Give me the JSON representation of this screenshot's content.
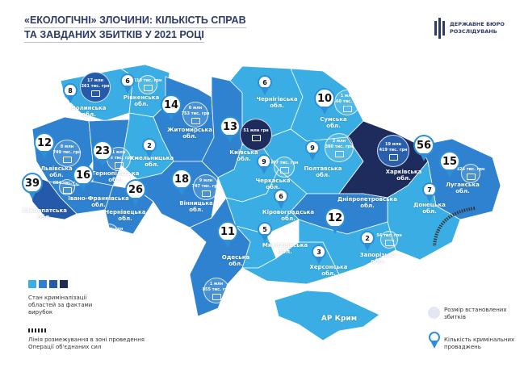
{
  "title": {
    "line1": "«ЕКОЛОГІЧНІ» ЗЛОЧИНИ: КІЛЬКІСТЬ СПРАВ",
    "line2": "ТА ЗАВДАНИХ ЗБИТКІВ У 2021 РОЦІ"
  },
  "logo": {
    "line1": "ДЕРЖАВНЕ БЮРО",
    "line2": "РОЗСЛІДУВАНЬ"
  },
  "colors": {
    "shade1": "#3aaee4",
    "shade2": "#2f82cf",
    "shade3": "#245aa9",
    "shade4": "#1d2b5d",
    "pin": "#2d8fd8",
    "title": "#2d3b66"
  },
  "regions": [
    {
      "name": "Волинська обл.",
      "count": 8,
      "damage": [
        "17 млн",
        "261 тис. грн"
      ],
      "shade": 1
    },
    {
      "name": "Рівненська обл.",
      "count": 6,
      "damage": [
        "218 тис. грн"
      ],
      "shade": 1
    },
    {
      "name": "Житомирська обл.",
      "count": 14,
      "damage": [
        "6 млн",
        "753 тис. грн"
      ],
      "shade": 2
    },
    {
      "name": "Київська обл.",
      "count": 13,
      "damage": [
        "51 млн грн"
      ],
      "shade": 2
    },
    {
      "name": "Чернігівська обл.",
      "count": 6,
      "damage": [],
      "shade": 1
    },
    {
      "name": "Сумська обл.",
      "count": 10,
      "damage": [
        "1 млн",
        "560 тис. грн"
      ],
      "shade": 1
    },
    {
      "name": "Львівська обл.",
      "count": 12,
      "damage": [
        "8 млн",
        "749 тис. грн"
      ],
      "shade": 2
    },
    {
      "name": "Тернопільська обл.",
      "count": 23,
      "damage": [
        "1 млн",
        "726 тис. грн"
      ],
      "shade": 2
    },
    {
      "name": "Хмельницька обл.",
      "count": 2,
      "damage": [],
      "shade": 1
    },
    {
      "name": "Вінницька обл.",
      "count": 18,
      "damage": [
        "9 млн",
        "747 тис. грн"
      ],
      "shade": 2
    },
    {
      "name": "Івано-Франківська обл.",
      "count": 16,
      "damage": [
        "604 тис. грн"
      ],
      "shade": 2
    },
    {
      "name": "Закарпатська обл.",
      "count": 39,
      "damage": [
        "6 млн",
        "76 тис. грн"
      ],
      "shade": 3
    },
    {
      "name": "Чернівецька обл.",
      "count": 26,
      "damage": [
        "869 тис. грн"
      ],
      "shade": 2
    },
    {
      "name": "Черкаська обл.",
      "count": 9,
      "damage": [
        "477 тис. грн"
      ],
      "shade": 1
    },
    {
      "name": "Полтавська обл.",
      "count": 9,
      "damage": [
        "2 млн",
        "380 тис. грн"
      ],
      "shade": 1
    },
    {
      "name": "Харківська обл.",
      "count": 56,
      "damage": [
        "19 млн",
        "419 тис. грн"
      ],
      "shade": 4
    },
    {
      "name": "Луганська обл.",
      "count": 15,
      "damage": [
        "326 тис. грн"
      ],
      "shade": 2
    },
    {
      "name": "Донецька обл.",
      "count": 7,
      "damage": [],
      "shade": 1
    },
    {
      "name": "Дніпропетровська обл.",
      "count": 12,
      "damage": [],
      "shade": 2
    },
    {
      "name": "Кіровоградська обл.",
      "count": 6,
      "damage": [],
      "shade": 1
    },
    {
      "name": "Миколаївська обл.",
      "count": 5,
      "damage": [],
      "shade": 1
    },
    {
      "name": "Одеська обл.",
      "count": 11,
      "damage": [
        "1 млн",
        "855 тис. грн"
      ],
      "shade": 2
    },
    {
      "name": "Херсонська обл.",
      "count": 3,
      "damage": [],
      "shade": 1
    },
    {
      "name": "Запорізька обл.",
      "count": 2,
      "damage": [
        "54 тис. грн"
      ],
      "shade": 1
    },
    {
      "name": "АР Крим",
      "count": null,
      "damage": [],
      "shade": 1
    }
  ],
  "legend": {
    "shades_label": "Стан криміналізації областей за фактами вирубок",
    "contact_line_label": "Лінія розмежування в зоні проведення Операції об'єднаних сил",
    "damage_label": "Розмір встановлених збитків",
    "count_label": "Кількість кримінальних проваджень"
  }
}
